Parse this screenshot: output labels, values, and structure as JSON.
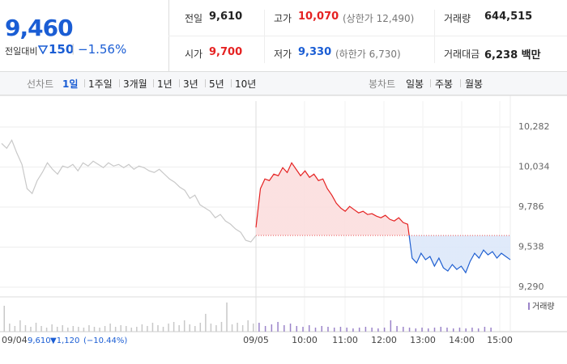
{
  "header": {
    "price": "9,460",
    "change_label": "전일대비",
    "change": "150",
    "change_rate": "−1.56%",
    "color": "#1a5dd4"
  },
  "summary": {
    "rows": [
      [
        {
          "label": "전일",
          "value": "9,610",
          "color": "#222"
        },
        {
          "label": "고가",
          "value": "10,070",
          "note": "(상한가 12,490)",
          "color": "#e52222"
        },
        {
          "label": "거래량",
          "value": "644,515",
          "color": "#222"
        }
      ],
      [
        {
          "label": "시가",
          "value": "9,700",
          "color": "#e52222"
        },
        {
          "label": "저가",
          "value": "9,330",
          "note": "(하한가 6,730)",
          "color": "#1a5dd4"
        },
        {
          "label": "거래대금",
          "value": "6,238 백만",
          "color": "#222"
        }
      ]
    ]
  },
  "tabs": {
    "line_label": "선차트",
    "line_tabs": [
      "1일",
      "1주일",
      "3개월",
      "1년",
      "3년",
      "5년",
      "10년"
    ],
    "active": 0,
    "candle_label": "봉차트",
    "candle_tabs": [
      "일봉",
      "주봉",
      "월봉"
    ]
  },
  "chart_data": {
    "type": "line",
    "ylim": [
      9240,
      10442
    ],
    "yticks": [
      {
        "value": 10282,
        "label": "10,282"
      },
      {
        "value": 10034,
        "label": "10,034"
      },
      {
        "value": 9786,
        "label": "9,786"
      },
      {
        "value": 9538,
        "label": "9,538"
      },
      {
        "value": 9290,
        "label": "9,290"
      }
    ],
    "x_labels": [
      "09/04",
      "09/05",
      "10:00",
      "11:00",
      "12:00",
      "13:00",
      "14:00",
      "15:00"
    ],
    "reference": 9610,
    "series": [
      {
        "color": "#c8c8c8",
        "values": [
          10180,
          10150,
          10200,
          10120,
          10050,
          9900,
          9870,
          9950,
          10000,
          10060,
          10020,
          9990,
          10040,
          10030,
          10050,
          10010,
          10060,
          10040,
          10070,
          10050,
          10030,
          10060,
          10040,
          10050,
          10030,
          10050,
          10020,
          10040,
          10030,
          10010,
          10000,
          10020,
          9990,
          9960,
          9940,
          9910,
          9890,
          9840,
          9860,
          9800,
          9780,
          9760,
          9720,
          9740,
          9700,
          9680,
          9650,
          9630,
          9580,
          9570,
          9610
        ]
      },
      {
        "color_up": "#e52222",
        "color_down": "#1f5fd1",
        "fill_up": "#fbdede",
        "fill_down": "#dce8fa",
        "values": [
          9660,
          9900,
          9960,
          9950,
          9990,
          9980,
          10030,
          10000,
          10060,
          10020,
          9980,
          10010,
          9970,
          9990,
          9950,
          9960,
          9900,
          9860,
          9810,
          9780,
          9760,
          9790,
          9770,
          9750,
          9760,
          9740,
          9745,
          9730,
          9720,
          9735,
          9710,
          9700,
          9720,
          9690,
          9680,
          9470,
          9440,
          9500,
          9460,
          9480,
          9420,
          9470,
          9410,
          9390,
          9430,
          9400,
          9420,
          9380,
          9450,
          9500,
          9470,
          9520,
          9490,
          9510,
          9470,
          9500,
          9480,
          9460
        ]
      }
    ],
    "volume_label": "거래량",
    "volume_ylim": [
      0,
      40000
    ],
    "volume": [
      {
        "color": "#c8c8c8",
        "values": [
          30000,
          8000,
          5000,
          12000,
          6000,
          4000,
          9000,
          5000,
          3000,
          7000,
          4000,
          6000,
          3000,
          5000,
          4000,
          3000,
          6000,
          4000,
          3000,
          5000,
          8000,
          4000,
          6000,
          5000,
          3000,
          4000,
          7000,
          5000,
          9000,
          6000,
          4000,
          8000,
          10000,
          6000,
          12000,
          7000,
          5000,
          9000,
          20000,
          8000,
          6000,
          10000,
          34000,
          7000,
          9000,
          6000,
          12000,
          8000
        ]
      },
      {
        "color": "#9b84c9",
        "values": [
          9000,
          5000,
          7000,
          10000,
          6000,
          8000,
          5000,
          4000,
          6000,
          3000,
          5000,
          4000,
          3000,
          4000,
          3000,
          2000,
          3000,
          4000,
          3000,
          2000,
          3000,
          12000,
          5000,
          4000,
          3000,
          2000,
          3000,
          2000,
          3000,
          4000,
          3000,
          2000,
          3000,
          2000,
          3000,
          2000,
          4000,
          3000
        ]
      }
    ],
    "legend": {
      "date": "09/04",
      "close": "9,610",
      "change": "▼1,120",
      "rate": "(−10.44%)"
    }
  }
}
